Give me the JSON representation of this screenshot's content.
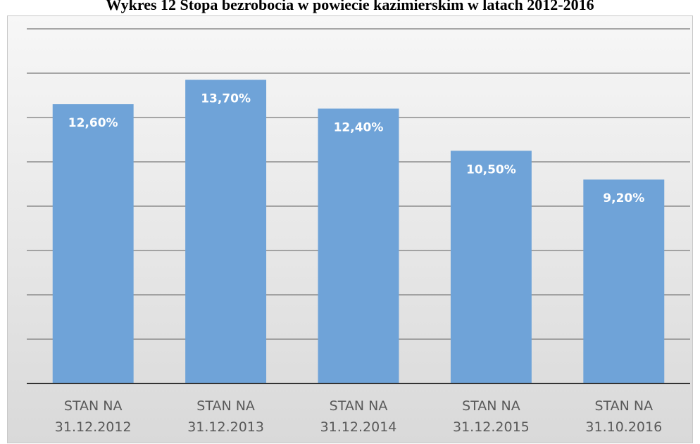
{
  "chart_data": {
    "type": "bar",
    "title": "Wykres 12 Stopa bezrobocia w powiecie kazimierskim w latach 2012-2016",
    "categories": [
      "STAN NA 31.12.2012",
      "STAN NA 31.12.2013",
      "STAN NA 31.12.2014",
      "STAN NA 31.12.2015",
      "STAN NA 31.10.2016"
    ],
    "values": [
      12.6,
      13.7,
      12.4,
      10.5,
      9.2
    ],
    "value_labels": [
      "12,60%",
      "13,70%",
      "12,40%",
      "10,50%",
      "9,20%"
    ],
    "color": "#6fa3d8",
    "ylim": [
      0,
      16
    ],
    "yticks": [
      0,
      2,
      4,
      6,
      8,
      10,
      12,
      14,
      16
    ],
    "grid": true
  }
}
